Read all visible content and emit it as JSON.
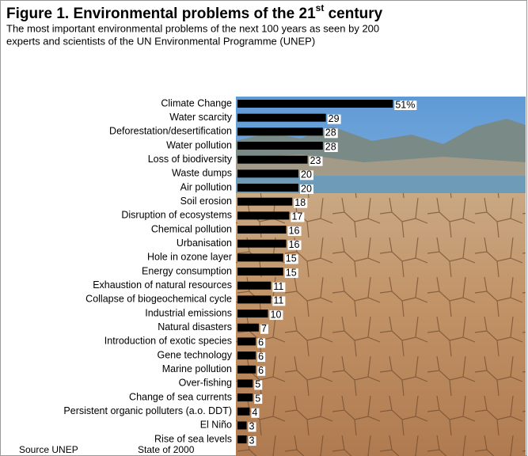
{
  "chart_data": {
    "type": "bar",
    "title": "Figure 1.  Environmental problems of the 21",
    "title_superscript": "st",
    "title_end": " century",
    "subtitle": [
      "The most important environmental problems of the next 100 years as seen by 200",
      "experts and scientists of the UN Environmental Programme (UNEP)"
    ],
    "categories": [
      "Climate Change",
      "Water scarcity",
      "Deforestation/desertification",
      "Water pollution",
      "Loss of biodiversity",
      "Waste dumps",
      "Air pollution",
      "Soil erosion",
      "Disruption of ecosystems",
      "Chemical pollution",
      "Urbanisation",
      "Hole in ozone layer",
      "Energy consumption",
      "Exhaustion of natural resources",
      "Collapse of biogeochemical cycle",
      "Industrial emissions",
      "Natural disasters",
      "Introduction of exotic species",
      "Gene technology",
      "Marine pollution",
      "Over-fishing",
      "Change of sea currents",
      "Persistent organic polluters (a.o. DDT)",
      "El Niño",
      "Rise of sea levels"
    ],
    "values": [
      51,
      29,
      28,
      28,
      23,
      20,
      20,
      18,
      17,
      16,
      16,
      15,
      15,
      11,
      11,
      10,
      7,
      6,
      6,
      6,
      5,
      5,
      4,
      3,
      3
    ],
    "value_labels": [
      "51%",
      "29",
      "28",
      "28",
      "23",
      "20",
      "20",
      "18",
      "17",
      "16",
      "16",
      "15",
      "15",
      "11",
      "11",
      "10",
      "7",
      "6",
      "6",
      "6",
      "5",
      "5",
      "4",
      "3",
      "3"
    ],
    "color": "#000000",
    "source": "Source UNEP",
    "source_note": "State of 2000"
  }
}
